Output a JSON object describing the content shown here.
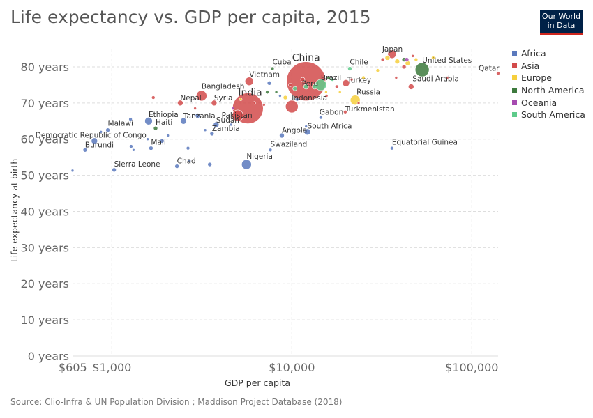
{
  "title": "Life expectancy vs. GDP per capita, 2015",
  "logo": {
    "line1": "Our World",
    "line2": "in Data"
  },
  "source": "Source: Clio-Infra & UN Population Division ; Maddison Project Database (2018)",
  "colors": {
    "Africa": "#5b79bd",
    "Asia": "#d24b4b",
    "Europe": "#f6cf3c",
    "North America": "#3d7a3d",
    "Oceania": "#a64ab0",
    "South America": "#5ecb8b"
  },
  "chart_data": {
    "type": "scatter",
    "title": "Life expectancy vs. GDP per capita, 2015",
    "xlabel": "GDP per capita",
    "ylabel": "Life expectancy at birth",
    "x_scale": "log",
    "xlim": [
      605,
      140000
    ],
    "ylim": [
      0,
      85
    ],
    "x_ticks": [
      {
        "v": 605,
        "label": "$605"
      },
      {
        "v": 1000,
        "label": "$1,000"
      },
      {
        "v": 10000,
        "label": "$10,000"
      },
      {
        "v": 100000,
        "label": "$100,000"
      }
    ],
    "y_ticks": [
      {
        "v": 0,
        "label": "0 years"
      },
      {
        "v": 10,
        "label": "10 years"
      },
      {
        "v": 20,
        "label": "20 years"
      },
      {
        "v": 30,
        "label": "30 years"
      },
      {
        "v": 40,
        "label": "40 years"
      },
      {
        "v": 50,
        "label": "50 years"
      },
      {
        "v": 60,
        "label": "60 years"
      },
      {
        "v": 70,
        "label": "70 years"
      },
      {
        "v": 80,
        "label": "80 years"
      }
    ],
    "grid": true,
    "legend_position": "right",
    "series_names": [
      "Africa",
      "Asia",
      "Europe",
      "North America",
      "Oceania",
      "South America"
    ],
    "points": [
      {
        "label": "China",
        "x": 12000,
        "y": 76,
        "r": 28,
        "series": "Asia"
      },
      {
        "label": "India",
        "x": 5700,
        "y": 68.5,
        "r": 22,
        "series": "Asia"
      },
      {
        "label": "United States",
        "x": 53000,
        "y": 79.2,
        "r": 10,
        "series": "North America"
      },
      {
        "label": "Indonesia",
        "x": 10000,
        "y": 69,
        "r": 9,
        "series": "Asia"
      },
      {
        "label": "Brazil",
        "x": 14500,
        "y": 75,
        "r": 8,
        "series": "South America"
      },
      {
        "label": "Pakistan",
        "x": 5000,
        "y": 66.5,
        "r": 8,
        "series": "Asia"
      },
      {
        "label": "Nigeria",
        "x": 5600,
        "y": 53,
        "r": 7,
        "series": "Africa"
      },
      {
        "label": "Bangladesh",
        "x": 3150,
        "y": 72,
        "r": 7.5,
        "series": "Asia"
      },
      {
        "label": "Russia",
        "x": 22500,
        "y": 70.8,
        "r": 7,
        "series": "Europe"
      },
      {
        "label": "Japan",
        "x": 36000,
        "y": 83.5,
        "r": 6,
        "series": "Asia"
      },
      {
        "label": "Vietnam",
        "x": 5800,
        "y": 76,
        "r": 6,
        "series": "Asia"
      },
      {
        "label": "Turkey",
        "x": 20000,
        "y": 75.5,
        "r": 5,
        "series": "Asia"
      },
      {
        "label": "Ethiopia",
        "x": 1600,
        "y": 65,
        "r": 5.5,
        "series": "Africa"
      },
      {
        "label": "Peru",
        "x": 12000,
        "y": 74.5,
        "r": 3.5,
        "series": "South America"
      },
      {
        "label": "Cuba",
        "x": 7800,
        "y": 79.5,
        "r": 2.5,
        "series": "North America"
      },
      {
        "label": "Chile",
        "x": 21000,
        "y": 79.5,
        "r": 3,
        "series": "South America"
      },
      {
        "label": "Saudi Arabia",
        "x": 46000,
        "y": 74.5,
        "r": 4,
        "series": "Asia"
      },
      {
        "label": "Qatar",
        "x": 140000,
        "y": 78.2,
        "r": 2.5,
        "series": "Asia"
      },
      {
        "label": "Nepal",
        "x": 2400,
        "y": 70,
        "r": 4,
        "series": "Asia"
      },
      {
        "label": "Syria",
        "x": 3700,
        "y": 70,
        "r": 4,
        "series": "Asia"
      },
      {
        "label": "Tanzania",
        "x": 2500,
        "y": 65,
        "r": 4.5,
        "series": "Africa"
      },
      {
        "label": "Sudan",
        "x": 3800,
        "y": 64,
        "r": 4,
        "series": "Africa"
      },
      {
        "label": "Haiti",
        "x": 1750,
        "y": 63,
        "r": 3,
        "series": "North America"
      },
      {
        "label": "Malawi",
        "x": 950,
        "y": 62.5,
        "r": 3,
        "series": "Africa"
      },
      {
        "label": "Democratic Republic of Congo",
        "x": 800,
        "y": 59.5,
        "r": 4.5,
        "series": "Africa"
      },
      {
        "label": "Burundi",
        "x": 710,
        "y": 57,
        "r": 3,
        "series": "Africa"
      },
      {
        "label": "Mali",
        "x": 1650,
        "y": 57.5,
        "r": 3,
        "series": "Africa"
      },
      {
        "label": "Zambia",
        "x": 3600,
        "y": 61.5,
        "r": 3,
        "series": "Africa"
      },
      {
        "label": "Sierra Leone",
        "x": 1030,
        "y": 51.5,
        "r": 3,
        "series": "Africa"
      },
      {
        "label": "Chad",
        "x": 2300,
        "y": 52.5,
        "r": 3,
        "series": "Africa"
      },
      {
        "label": "Angola",
        "x": 8800,
        "y": 61,
        "r": 3.5,
        "series": "Africa"
      },
      {
        "label": "South Africa",
        "x": 12200,
        "y": 62,
        "r": 4.5,
        "series": "Africa"
      },
      {
        "label": "Swaziland",
        "x": 7600,
        "y": 57,
        "r": 2.5,
        "series": "Africa"
      },
      {
        "label": "Gabon",
        "x": 14500,
        "y": 66,
        "r": 2.5,
        "series": "Africa"
      },
      {
        "label": "Turkmenistan",
        "x": 19800,
        "y": 67.5,
        "r": 2.5,
        "series": "Asia"
      },
      {
        "label": "Equatorial Guinea",
        "x": 36000,
        "y": 57.5,
        "r": 2.5,
        "series": "Africa"
      },
      {
        "label": "",
        "x": 605,
        "y": 51.3,
        "r": 2,
        "series": "Africa"
      },
      {
        "label": "",
        "x": 870,
        "y": 62,
        "r": 2,
        "series": "Africa"
      },
      {
        "label": "",
        "x": 1280,
        "y": 58,
        "r": 2.5,
        "series": "Africa"
      },
      {
        "label": "",
        "x": 1270,
        "y": 65.5,
        "r": 2.5,
        "series": "Africa"
      },
      {
        "label": "",
        "x": 1320,
        "y": 57,
        "r": 2,
        "series": "Africa"
      },
      {
        "label": "",
        "x": 1580,
        "y": 60,
        "r": 2,
        "series": "Africa"
      },
      {
        "label": "",
        "x": 1900,
        "y": 59.5,
        "r": 3,
        "series": "Africa"
      },
      {
        "label": "",
        "x": 2050,
        "y": 61,
        "r": 2,
        "series": "Africa"
      },
      {
        "label": "",
        "x": 2650,
        "y": 57.5,
        "r": 2.5,
        "series": "Africa"
      },
      {
        "label": "",
        "x": 2700,
        "y": 54,
        "r": 2,
        "series": "Africa"
      },
      {
        "label": "",
        "x": 3000,
        "y": 66.5,
        "r": 3.5,
        "series": "Africa"
      },
      {
        "label": "",
        "x": 3300,
        "y": 62.5,
        "r": 2,
        "series": "Africa"
      },
      {
        "label": "",
        "x": 3500,
        "y": 53,
        "r": 3,
        "series": "Africa"
      },
      {
        "label": "",
        "x": 4600,
        "y": 64,
        "r": 2,
        "series": "Africa"
      },
      {
        "label": "",
        "x": 7500,
        "y": 75.5,
        "r": 3,
        "series": "Africa"
      },
      {
        "label": "",
        "x": 10700,
        "y": 71,
        "r": 2.5,
        "series": "Africa"
      },
      {
        "label": "",
        "x": 12000,
        "y": 63.5,
        "r": 2,
        "series": "Africa"
      },
      {
        "label": "",
        "x": 8600,
        "y": 72,
        "r": 2,
        "series": "Africa"
      },
      {
        "label": "",
        "x": 1700,
        "y": 71.5,
        "r": 2.5,
        "series": "Asia"
      },
      {
        "label": "",
        "x": 2900,
        "y": 68.5,
        "r": 2,
        "series": "Asia"
      },
      {
        "label": "",
        "x": 6200,
        "y": 70,
        "r": 2,
        "series": "Asia"
      },
      {
        "label": "",
        "x": 9800,
        "y": 75,
        "r": 2.5,
        "series": "Asia"
      },
      {
        "label": "",
        "x": 11500,
        "y": 76.5,
        "r": 3,
        "series": "Asia"
      },
      {
        "label": "",
        "x": 15600,
        "y": 72,
        "r": 2,
        "series": "Asia"
      },
      {
        "label": "",
        "x": 17800,
        "y": 74.5,
        "r": 2.5,
        "series": "Asia"
      },
      {
        "label": "",
        "x": 21500,
        "y": 76.5,
        "r": 2,
        "series": "Asia"
      },
      {
        "label": "",
        "x": 32000,
        "y": 82,
        "r": 2.5,
        "series": "Asia"
      },
      {
        "label": "",
        "x": 38000,
        "y": 77,
        "r": 2,
        "series": "Asia"
      },
      {
        "label": "",
        "x": 42000,
        "y": 80,
        "r": 3,
        "series": "Asia"
      },
      {
        "label": "",
        "x": 47000,
        "y": 83,
        "r": 2,
        "series": "Asia"
      },
      {
        "label": "",
        "x": 73000,
        "y": 77,
        "r": 2,
        "series": "Asia"
      },
      {
        "label": "",
        "x": 7000,
        "y": 69.5,
        "r": 2,
        "series": "Asia"
      },
      {
        "label": "",
        "x": 23500,
        "y": 70,
        "r": 2,
        "series": "Asia"
      },
      {
        "label": "",
        "x": 9200,
        "y": 71.5,
        "r": 3,
        "series": "Europe"
      },
      {
        "label": "",
        "x": 15500,
        "y": 73,
        "r": 2,
        "series": "Europe"
      },
      {
        "label": "",
        "x": 18500,
        "y": 73,
        "r": 2,
        "series": "Europe"
      },
      {
        "label": "",
        "x": 25000,
        "y": 77,
        "r": 2.5,
        "series": "Europe"
      },
      {
        "label": "",
        "x": 30000,
        "y": 79,
        "r": 2.5,
        "series": "Europe"
      },
      {
        "label": "",
        "x": 34000,
        "y": 82.5,
        "r": 3.5,
        "series": "Europe"
      },
      {
        "label": "",
        "x": 38500,
        "y": 81.5,
        "r": 3.5,
        "series": "Europe"
      },
      {
        "label": "",
        "x": 44000,
        "y": 81,
        "r": 3.5,
        "series": "Europe"
      },
      {
        "label": "",
        "x": 49000,
        "y": 82,
        "r": 2.5,
        "series": "Europe"
      },
      {
        "label": "",
        "x": 61000,
        "y": 82.5,
        "r": 2.5,
        "series": "Europe"
      },
      {
        "label": "",
        "x": 5200,
        "y": 71,
        "r": 2,
        "series": "Europe"
      },
      {
        "label": "",
        "x": 7300,
        "y": 73,
        "r": 2.5,
        "series": "North America"
      },
      {
        "label": "",
        "x": 8200,
        "y": 73,
        "r": 2,
        "series": "North America"
      },
      {
        "label": "",
        "x": 16000,
        "y": 77,
        "r": 2.5,
        "series": "North America"
      },
      {
        "label": "",
        "x": 42000,
        "y": 82,
        "r": 3,
        "series": "North America"
      },
      {
        "label": "",
        "x": 43500,
        "y": 82,
        "r": 3,
        "series": "Oceania"
      },
      {
        "label": "",
        "x": 4700,
        "y": 68.5,
        "r": 2,
        "series": "Oceania"
      },
      {
        "label": "",
        "x": 10400,
        "y": 74,
        "r": 3,
        "series": "South America"
      },
      {
        "label": "",
        "x": 13400,
        "y": 74.5,
        "r": 3.5,
        "series": "South America"
      },
      {
        "label": "",
        "x": 16800,
        "y": 76.5,
        "r": 2.5,
        "series": "South America"
      }
    ]
  }
}
